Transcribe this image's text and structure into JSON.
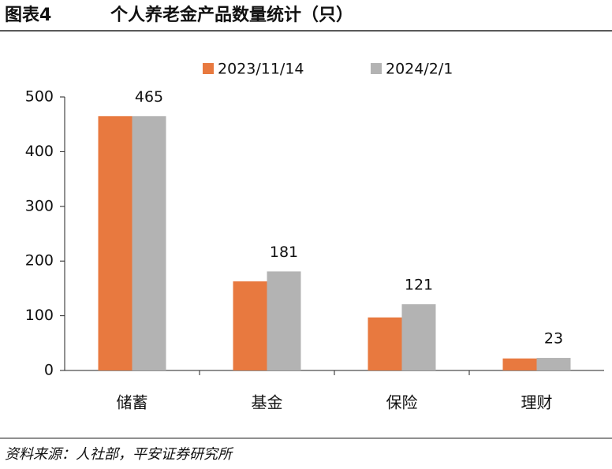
{
  "figure_label": "图表4",
  "chart_data": {
    "type": "bar",
    "title": "个人养老金产品数量统计（只）",
    "categories": [
      "储蓄",
      "基金",
      "保险",
      "理财"
    ],
    "series": [
      {
        "name": "2023/11/14",
        "color": "#e8793f",
        "values": [
          465,
          163,
          97,
          22
        ],
        "show_labels": false
      },
      {
        "name": "2024/2/1",
        "color": "#b3b3b3",
        "values": [
          465,
          181,
          121,
          23
        ],
        "show_labels": true
      }
    ],
    "ylim": [
      0,
      500
    ],
    "yticks": [
      0,
      100,
      200,
      300,
      400,
      500
    ],
    "legend": "top"
  },
  "source": "资料来源：人社部，平安证券研究所"
}
